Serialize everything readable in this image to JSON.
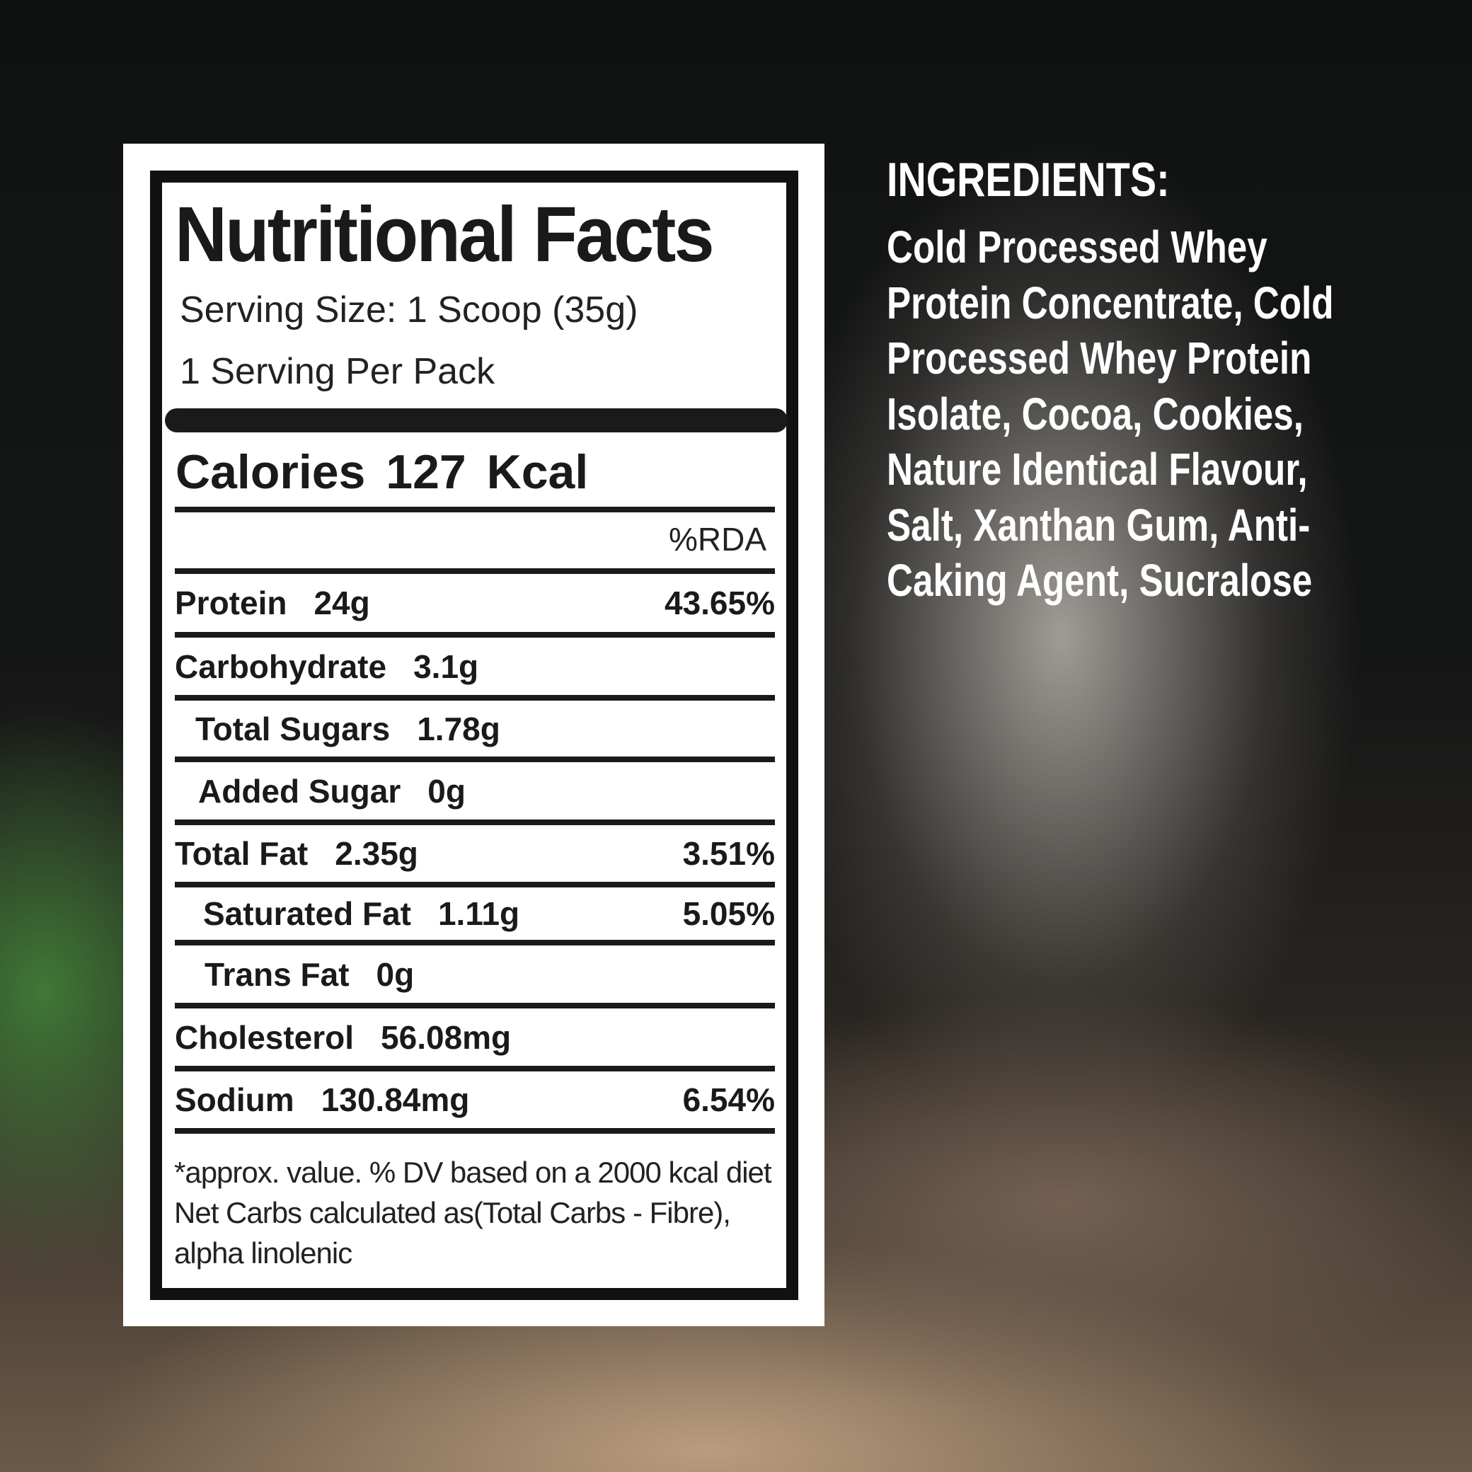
{
  "label": {
    "title": "Nutritional Facts",
    "serving_size": "Serving Size: 1 Scoop (35g)",
    "servings": "1 Serving Per Pack",
    "calories_label": "Calories",
    "calories_value": "127 Kcal",
    "rda_header": "%RDA",
    "rows": [
      {
        "name": "Protein",
        "amount": "24g",
        "rda": "43.65%"
      },
      {
        "name": "Carbohydrate",
        "amount": "3.1g",
        "rda": ""
      },
      {
        "name": "Total Sugars",
        "amount": "1.78g",
        "rda": ""
      },
      {
        "name": "Added Sugar",
        "amount": "0g",
        "rda": ""
      },
      {
        "name": "Total Fat",
        "amount": "2.35g",
        "rda": "3.51%"
      },
      {
        "name": "Saturated Fat",
        "amount": "1.11g",
        "rda": "5.05%"
      },
      {
        "name": "Trans Fat",
        "amount": "0g",
        "rda": ""
      },
      {
        "name": "Cholesterol",
        "amount": "56.08mg",
        "rda": ""
      },
      {
        "name": "Sodium",
        "amount": "130.84mg",
        "rda": "6.54%"
      }
    ],
    "footnote": "*approx. value. % DV based on a 2000 kcal diet Net Carbs calculated as(Total Carbs - Fibre), alpha linolenic"
  },
  "ingredients": {
    "heading": "INGREDIENTS:",
    "lines": [
      "Cold Processed Whey",
      "Protein Concentrate, Cold",
      "Processed Whey Protein",
      "Isolate, Cocoa, Cookies,",
      "Nature Identical Flavour,",
      "Salt, Xanthan Gum, Anti-",
      "Caking Agent, Sucralose"
    ]
  }
}
